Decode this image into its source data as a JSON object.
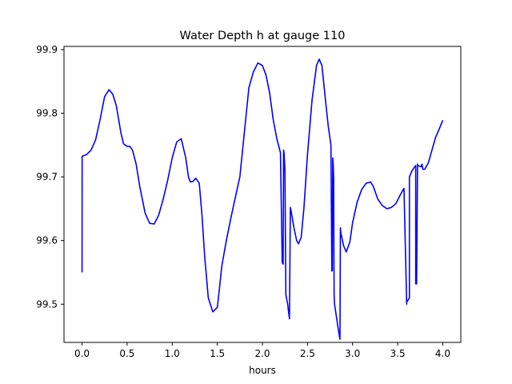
{
  "chart_data": {
    "type": "line",
    "title": "Water Depth h at gauge 110",
    "xlabel": "hours",
    "ylabel": "",
    "xlim": [
      -0.2,
      4.2
    ],
    "ylim": [
      99.44,
      99.905
    ],
    "x_ticks": [
      0.0,
      0.5,
      1.0,
      1.5,
      2.0,
      2.5,
      3.0,
      3.5,
      4.0
    ],
    "x_tick_labels": [
      "0.0",
      "0.5",
      "1.0",
      "1.5",
      "2.0",
      "2.5",
      "3.0",
      "3.5",
      "4.0"
    ],
    "y_ticks": [
      99.5,
      99.6,
      99.7,
      99.8,
      99.9
    ],
    "y_tick_labels": [
      "99.5",
      "99.6",
      "99.7",
      "99.8",
      "99.9"
    ],
    "grid": false,
    "line_color": "#0000ff",
    "series": [
      {
        "x": [
          0.0,
          0.001,
          0.01,
          0.05,
          0.1,
          0.15,
          0.2,
          0.25,
          0.3,
          0.34,
          0.38,
          0.43,
          0.46,
          0.5,
          0.53,
          0.56,
          0.6,
          0.64,
          0.7,
          0.75,
          0.8,
          0.85,
          0.9,
          0.95,
          1.0,
          1.05,
          1.1,
          1.15,
          1.18,
          1.2,
          1.23,
          1.26,
          1.3,
          1.33,
          1.36,
          1.4,
          1.45,
          1.5,
          1.52,
          1.55,
          1.6,
          1.65,
          1.7,
          1.75,
          1.8,
          1.85,
          1.9,
          1.95,
          2.0,
          2.04,
          2.08,
          2.12,
          2.16,
          2.2,
          2.22,
          2.23,
          2.235,
          2.24,
          2.25,
          2.26,
          2.28,
          2.3,
          2.31,
          2.32,
          2.35,
          2.38,
          2.4,
          2.43,
          2.46,
          2.5,
          2.55,
          2.6,
          2.63,
          2.66,
          2.7,
          2.73,
          2.76,
          2.77,
          2.775,
          2.78,
          2.785,
          2.79,
          2.795,
          2.8,
          2.84,
          2.86,
          2.865,
          2.87,
          2.9,
          2.93,
          2.97,
          3.0,
          3.05,
          3.1,
          3.15,
          3.2,
          3.23,
          3.28,
          3.33,
          3.38,
          3.43,
          3.48,
          3.53,
          3.57,
          3.6,
          3.6,
          3.63,
          3.63,
          3.66,
          3.7,
          3.7,
          3.71,
          3.72,
          3.72,
          3.76,
          3.77,
          3.78,
          3.8,
          3.84,
          3.88,
          3.92,
          3.96,
          4.0
        ],
        "y": [
          99.55,
          99.732,
          99.733,
          99.735,
          99.742,
          99.758,
          99.79,
          99.826,
          99.837,
          99.83,
          99.812,
          99.77,
          99.752,
          99.748,
          99.748,
          99.742,
          99.72,
          99.685,
          99.643,
          99.627,
          99.626,
          99.64,
          99.665,
          99.695,
          99.73,
          99.755,
          99.76,
          99.73,
          99.7,
          99.692,
          99.693,
          99.698,
          99.69,
          99.64,
          99.575,
          99.51,
          99.488,
          99.495,
          99.52,
          99.56,
          99.6,
          99.635,
          99.668,
          99.7,
          99.77,
          99.84,
          99.865,
          99.879,
          99.875,
          99.86,
          99.832,
          99.79,
          99.76,
          99.738,
          99.565,
          99.563,
          99.742,
          99.738,
          99.71,
          99.515,
          99.5,
          99.477,
          99.652,
          99.645,
          99.62,
          99.6,
          99.595,
          99.605,
          99.65,
          99.735,
          99.82,
          99.875,
          99.885,
          99.875,
          99.82,
          99.78,
          99.75,
          99.552,
          99.553,
          99.73,
          99.72,
          99.698,
          99.515,
          99.5,
          99.462,
          99.445,
          99.62,
          99.612,
          99.592,
          99.582,
          99.598,
          99.628,
          99.66,
          99.68,
          99.69,
          99.692,
          99.685,
          99.665,
          99.655,
          99.65,
          99.652,
          99.658,
          99.672,
          99.682,
          99.5,
          99.503,
          99.51,
          99.7,
          99.71,
          99.718,
          99.532,
          99.532,
          99.72,
          99.718,
          99.716,
          99.72,
          99.712,
          99.712,
          99.722,
          99.742,
          99.762,
          99.775,
          99.789
        ]
      }
    ]
  }
}
